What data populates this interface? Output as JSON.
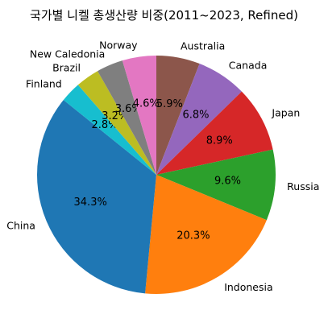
{
  "chart_data": {
    "type": "pie",
    "title": "국가별 니켈 총생산량 비중(2011~2023,  Refined)",
    "start_angle_deg": 90,
    "direction": "clockwise",
    "slices": [
      {
        "label": "Australia",
        "percent": 5.9,
        "color": "#8c564b"
      },
      {
        "label": "Canada",
        "percent": 6.8,
        "color": "#9467bd"
      },
      {
        "label": "Japan",
        "percent": 8.9,
        "color": "#d62728"
      },
      {
        "label": "Russia",
        "percent": 9.6,
        "color": "#2ca02c"
      },
      {
        "label": "Indonesia",
        "percent": 20.3,
        "color": "#ff7f0e"
      },
      {
        "label": "China",
        "percent": 34.3,
        "color": "#1f77b4"
      },
      {
        "label": "Finland",
        "percent": 2.8,
        "color": "#17becf"
      },
      {
        "label": "Brazil",
        "percent": 3.2,
        "color": "#bcbd22"
      },
      {
        "label": "New Caledonia",
        "percent": 3.6,
        "color": "#7f7f7f"
      },
      {
        "label": "Norway",
        "percent": 4.6,
        "color": "#e377c2"
      }
    ]
  }
}
